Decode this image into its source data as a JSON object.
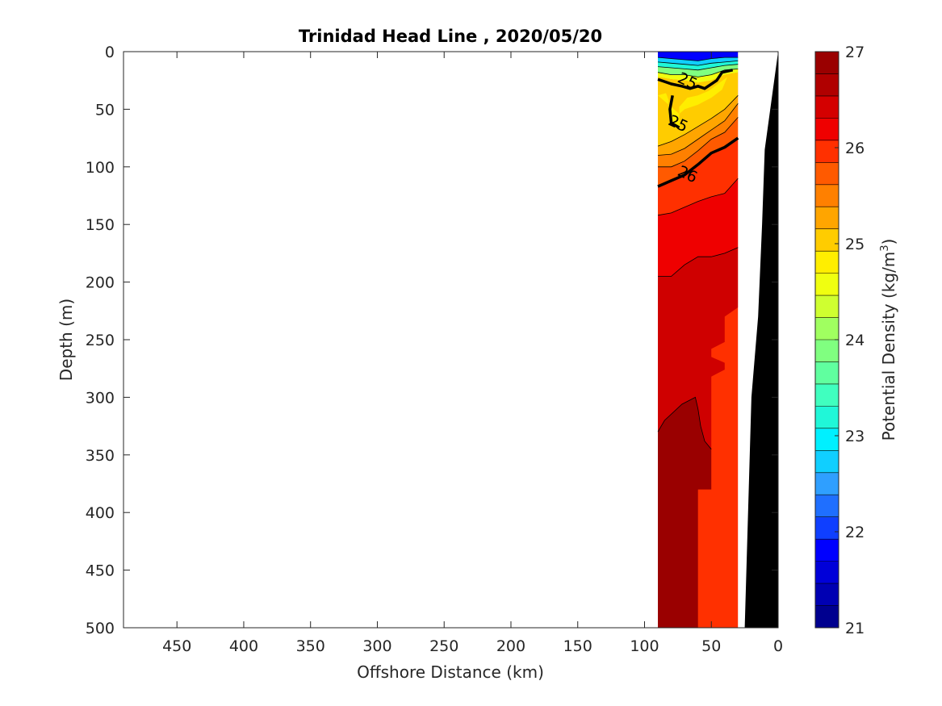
{
  "chart_data": {
    "type": "contour",
    "title": "Trinidad Head Line , 2020/05/20",
    "xlabel": "Offshore Distance (km)",
    "ylabel": "Depth (m)",
    "xlim": [
      490,
      0
    ],
    "xdirection": "reversed",
    "ylim": [
      0,
      500
    ],
    "ydirection": "reversed",
    "xticks": [
      450,
      400,
      350,
      300,
      250,
      200,
      150,
      100,
      50,
      0
    ],
    "yticks": [
      0,
      50,
      100,
      150,
      200,
      250,
      300,
      350,
      400,
      450,
      500
    ],
    "colorbar": {
      "label": "Potential Density (kg/m",
      "label_superscript": "3",
      "label_close": ")",
      "range": [
        21,
        27
      ],
      "ticks": [
        21,
        22,
        23,
        24,
        25,
        26,
        27
      ],
      "levels_step": 0.25,
      "colors": [
        "#00008f",
        "#0000b3",
        "#0000d9",
        "#0000ff",
        "#0f3fff",
        "#1f6fff",
        "#2f9fff",
        "#10cfff",
        "#00f0ff",
        "#20f7d8",
        "#40ffbf",
        "#60ff9f",
        "#80ff80",
        "#a0ff60",
        "#cfff30",
        "#f0ff10",
        "#ffee00",
        "#ffcc00",
        "#ffa500",
        "#ff8000",
        "#ff5a00",
        "#ff3000",
        "#ef0000",
        "#d40000",
        "#b00000",
        "#9a0000"
      ]
    },
    "contour_labels": [
      {
        "text": "25",
        "x": 75,
        "y": 63
      },
      {
        "text": "25",
        "x": 68,
        "y": 26
      },
      {
        "text": "26",
        "x": 68,
        "y": 107
      }
    ],
    "bands": [
      {
        "level": 26.75,
        "color": "#9a0000",
        "points": [
          [
            90,
            330
          ],
          [
            85,
            320
          ],
          [
            72,
            306
          ],
          [
            62,
            300
          ],
          [
            60,
            310
          ],
          [
            58,
            325
          ],
          [
            55,
            338
          ],
          [
            50,
            345
          ],
          [
            50,
            380
          ],
          [
            60,
            380
          ],
          [
            60,
            500
          ],
          [
            90,
            500
          ]
        ]
      },
      {
        "level": 26.5,
        "color": "#cf0000",
        "points": [
          [
            90,
            195
          ],
          [
            80,
            195
          ],
          [
            70,
            185
          ],
          [
            60,
            178
          ],
          [
            50,
            178
          ],
          [
            40,
            175
          ],
          [
            30,
            170
          ],
          [
            30,
            222
          ],
          [
            40,
            230
          ],
          [
            40,
            252
          ],
          [
            50,
            258
          ],
          [
            50,
            265
          ],
          [
            40,
            270
          ],
          [
            40,
            276
          ],
          [
            50,
            282
          ],
          [
            50,
            290
          ],
          [
            50,
            345
          ],
          [
            55,
            338
          ],
          [
            58,
            325
          ],
          [
            60,
            310
          ],
          [
            62,
            300
          ],
          [
            72,
            306
          ],
          [
            85,
            320
          ],
          [
            90,
            330
          ]
        ]
      },
      {
        "level": 26.25,
        "color": "#ef0000",
        "points": [
          [
            90,
            142
          ],
          [
            80,
            140
          ],
          [
            70,
            135
          ],
          [
            60,
            130
          ],
          [
            50,
            126
          ],
          [
            40,
            123
          ],
          [
            30,
            110
          ],
          [
            30,
            170
          ],
          [
            40,
            175
          ],
          [
            50,
            178
          ],
          [
            60,
            178
          ],
          [
            70,
            185
          ],
          [
            80,
            195
          ],
          [
            90,
            195
          ]
        ]
      },
      {
        "level": 26.0,
        "color": "#ff3000",
        "points": [
          [
            90,
            117
          ],
          [
            80,
            112
          ],
          [
            70,
            107
          ],
          [
            60,
            98
          ],
          [
            50,
            88
          ],
          [
            40,
            83
          ],
          [
            30,
            75
          ],
          [
            30,
            110
          ],
          [
            40,
            123
          ],
          [
            50,
            126
          ],
          [
            60,
            130
          ],
          [
            70,
            135
          ],
          [
            80,
            140
          ],
          [
            90,
            142
          ]
        ]
      },
      {
        "level": 25.75,
        "color": "#ff5a00",
        "points": [
          [
            90,
            100
          ],
          [
            80,
            100
          ],
          [
            70,
            95
          ],
          [
            60,
            86
          ],
          [
            50,
            76
          ],
          [
            40,
            70
          ],
          [
            30,
            57
          ],
          [
            30,
            75
          ],
          [
            40,
            83
          ],
          [
            50,
            88
          ],
          [
            60,
            98
          ],
          [
            70,
            107
          ],
          [
            80,
            112
          ],
          [
            90,
            117
          ]
        ]
      },
      {
        "level": 25.5,
        "color": "#ff8000",
        "points": [
          [
            90,
            90
          ],
          [
            80,
            89
          ],
          [
            70,
            84
          ],
          [
            60,
            76
          ],
          [
            50,
            68
          ],
          [
            40,
            60
          ],
          [
            30,
            45
          ],
          [
            30,
            57
          ],
          [
            40,
            70
          ],
          [
            50,
            76
          ],
          [
            60,
            86
          ],
          [
            70,
            95
          ],
          [
            80,
            100
          ],
          [
            90,
            100
          ]
        ]
      },
      {
        "level": 25.25,
        "color": "#ffa500",
        "points": [
          [
            90,
            82
          ],
          [
            80,
            78
          ],
          [
            70,
            72
          ],
          [
            60,
            65
          ],
          [
            50,
            58
          ],
          [
            40,
            50
          ],
          [
            30,
            38
          ],
          [
            30,
            45
          ],
          [
            40,
            60
          ],
          [
            50,
            68
          ],
          [
            60,
            76
          ],
          [
            70,
            84
          ],
          [
            80,
            89
          ],
          [
            90,
            90
          ]
        ]
      },
      {
        "level": 25.0,
        "color": "#ffcc00",
        "points": [
          [
            90,
            22
          ],
          [
            80,
            24
          ],
          [
            70,
            25
          ],
          [
            60,
            27
          ],
          [
            50,
            25
          ],
          [
            40,
            20
          ],
          [
            30,
            18
          ],
          [
            30,
            38
          ],
          [
            40,
            50
          ],
          [
            50,
            58
          ],
          [
            60,
            65
          ],
          [
            70,
            72
          ],
          [
            80,
            78
          ],
          [
            90,
            82
          ]
        ]
      },
      {
        "level": 24.75,
        "color": "#ffee00",
        "points": [
          [
            90,
            38
          ],
          [
            84,
            36
          ],
          [
            82,
            42
          ],
          [
            82,
            55
          ],
          [
            78,
            66
          ],
          [
            73,
            66
          ],
          [
            74,
            58
          ],
          [
            74,
            48
          ],
          [
            68,
            40
          ],
          [
            60,
            38
          ],
          [
            52,
            34
          ],
          [
            45,
            28
          ],
          [
            38,
            22
          ],
          [
            42,
            33
          ],
          [
            50,
            40
          ],
          [
            60,
            46
          ],
          [
            70,
            50
          ],
          [
            74,
            54
          ]
        ]
      },
      {
        "level": 24.5,
        "color": "#f0ff10",
        "points": [
          [
            90,
            18
          ],
          [
            80,
            20
          ],
          [
            70,
            20
          ],
          [
            60,
            22
          ],
          [
            50,
            20
          ],
          [
            40,
            16
          ],
          [
            30,
            15
          ],
          [
            30,
            18
          ],
          [
            40,
            20
          ],
          [
            50,
            25
          ],
          [
            60,
            27
          ],
          [
            70,
            25
          ],
          [
            80,
            24
          ],
          [
            90,
            22
          ]
        ]
      },
      {
        "level": 24.0,
        "color": "#80ff80",
        "points": [
          [
            90,
            13
          ],
          [
            80,
            14
          ],
          [
            70,
            15
          ],
          [
            60,
            16
          ],
          [
            50,
            14
          ],
          [
            40,
            12
          ],
          [
            30,
            11
          ],
          [
            30,
            15
          ],
          [
            40,
            16
          ],
          [
            50,
            20
          ],
          [
            60,
            22
          ],
          [
            70,
            20
          ],
          [
            80,
            20
          ],
          [
            90,
            18
          ]
        ]
      },
      {
        "level": 23.5,
        "color": "#20f7d8",
        "points": [
          [
            90,
            9
          ],
          [
            80,
            10
          ],
          [
            70,
            11
          ],
          [
            60,
            12
          ],
          [
            50,
            10
          ],
          [
            40,
            9
          ],
          [
            30,
            8
          ],
          [
            30,
            11
          ],
          [
            40,
            12
          ],
          [
            50,
            14
          ],
          [
            60,
            16
          ],
          [
            70,
            15
          ],
          [
            80,
            14
          ],
          [
            90,
            13
          ]
        ]
      },
      {
        "level": 23.0,
        "color": "#10cfff",
        "points": [
          [
            90,
            5
          ],
          [
            80,
            6
          ],
          [
            70,
            7
          ],
          [
            60,
            8
          ],
          [
            50,
            6
          ],
          [
            40,
            5
          ],
          [
            30,
            5
          ],
          [
            30,
            8
          ],
          [
            40,
            9
          ],
          [
            50,
            10
          ],
          [
            60,
            12
          ],
          [
            70,
            11
          ],
          [
            80,
            10
          ],
          [
            90,
            9
          ]
        ]
      },
      {
        "level": 22.0,
        "color": "#0000ff",
        "points": [
          [
            90,
            0
          ],
          [
            30,
            0
          ],
          [
            30,
            5
          ],
          [
            40,
            5
          ],
          [
            50,
            6
          ],
          [
            60,
            8
          ],
          [
            70,
            7
          ],
          [
            80,
            6
          ],
          [
            90,
            5
          ]
        ]
      }
    ],
    "thin_contours": [
      [
        [
          90,
          142
        ],
        [
          80,
          140
        ],
        [
          70,
          135
        ],
        [
          60,
          130
        ],
        [
          50,
          126
        ],
        [
          40,
          123
        ],
        [
          30,
          110
        ]
      ],
      [
        [
          90,
          195
        ],
        [
          80,
          195
        ],
        [
          70,
          185
        ],
        [
          60,
          178
        ],
        [
          50,
          178
        ],
        [
          40,
          175
        ],
        [
          30,
          170
        ]
      ],
      [
        [
          90,
          330
        ],
        [
          85,
          320
        ],
        [
          72,
          306
        ],
        [
          62,
          300
        ],
        [
          60,
          310
        ],
        [
          58,
          325
        ],
        [
          55,
          338
        ],
        [
          50,
          345
        ]
      ],
      [
        [
          90,
          100
        ],
        [
          80,
          100
        ],
        [
          70,
          95
        ],
        [
          60,
          86
        ],
        [
          50,
          76
        ],
        [
          40,
          70
        ],
        [
          30,
          57
        ]
      ],
      [
        [
          90,
          90
        ],
        [
          80,
          89
        ],
        [
          70,
          84
        ],
        [
          60,
          76
        ],
        [
          50,
          68
        ],
        [
          40,
          60
        ],
        [
          30,
          45
        ]
      ],
      [
        [
          90,
          82
        ],
        [
          80,
          78
        ],
        [
          70,
          72
        ],
        [
          60,
          65
        ],
        [
          50,
          58
        ],
        [
          40,
          50
        ],
        [
          30,
          38
        ]
      ],
      [
        [
          90,
          18
        ],
        [
          80,
          20
        ],
        [
          70,
          20
        ],
        [
          60,
          22
        ],
        [
          50,
          20
        ],
        [
          40,
          16
        ],
        [
          30,
          15
        ]
      ],
      [
        [
          90,
          13
        ],
        [
          80,
          14
        ],
        [
          70,
          15
        ],
        [
          60,
          16
        ],
        [
          50,
          14
        ],
        [
          40,
          12
        ],
        [
          30,
          11
        ]
      ],
      [
        [
          90,
          9
        ],
        [
          80,
          10
        ],
        [
          70,
          11
        ],
        [
          60,
          12
        ],
        [
          50,
          10
        ],
        [
          40,
          9
        ],
        [
          30,
          8
        ]
      ],
      [
        [
          90,
          5
        ],
        [
          80,
          6
        ],
        [
          70,
          7
        ],
        [
          60,
          8
        ],
        [
          50,
          6
        ],
        [
          40,
          5
        ],
        [
          30,
          5
        ]
      ]
    ],
    "bold_contours": [
      [
        [
          90,
          117
        ],
        [
          80,
          112
        ],
        [
          70,
          107
        ],
        [
          60,
          98
        ],
        [
          50,
          88
        ],
        [
          40,
          83
        ],
        [
          30,
          75
        ]
      ],
      [
        [
          74,
          66
        ],
        [
          80,
          62
        ],
        [
          81,
          50
        ],
        [
          79,
          38
        ]
      ],
      [
        [
          90,
          24
        ],
        [
          85,
          26
        ],
        [
          80,
          28
        ],
        [
          72,
          30
        ],
        [
          66,
          32
        ],
        [
          60,
          30
        ],
        [
          55,
          32
        ],
        [
          46,
          25
        ],
        [
          42,
          18
        ],
        [
          34,
          16
        ]
      ]
    ],
    "white_mask": [
      [
        30,
        0
      ],
      [
        0,
        0
      ],
      [
        0,
        500
      ],
      [
        30,
        500
      ]
    ],
    "bottom_topography": [
      [
        0,
        0
      ],
      [
        10,
        85
      ],
      [
        12,
        150
      ],
      [
        15,
        230
      ],
      [
        20,
        300
      ],
      [
        25,
        500
      ],
      [
        0,
        500
      ]
    ]
  }
}
